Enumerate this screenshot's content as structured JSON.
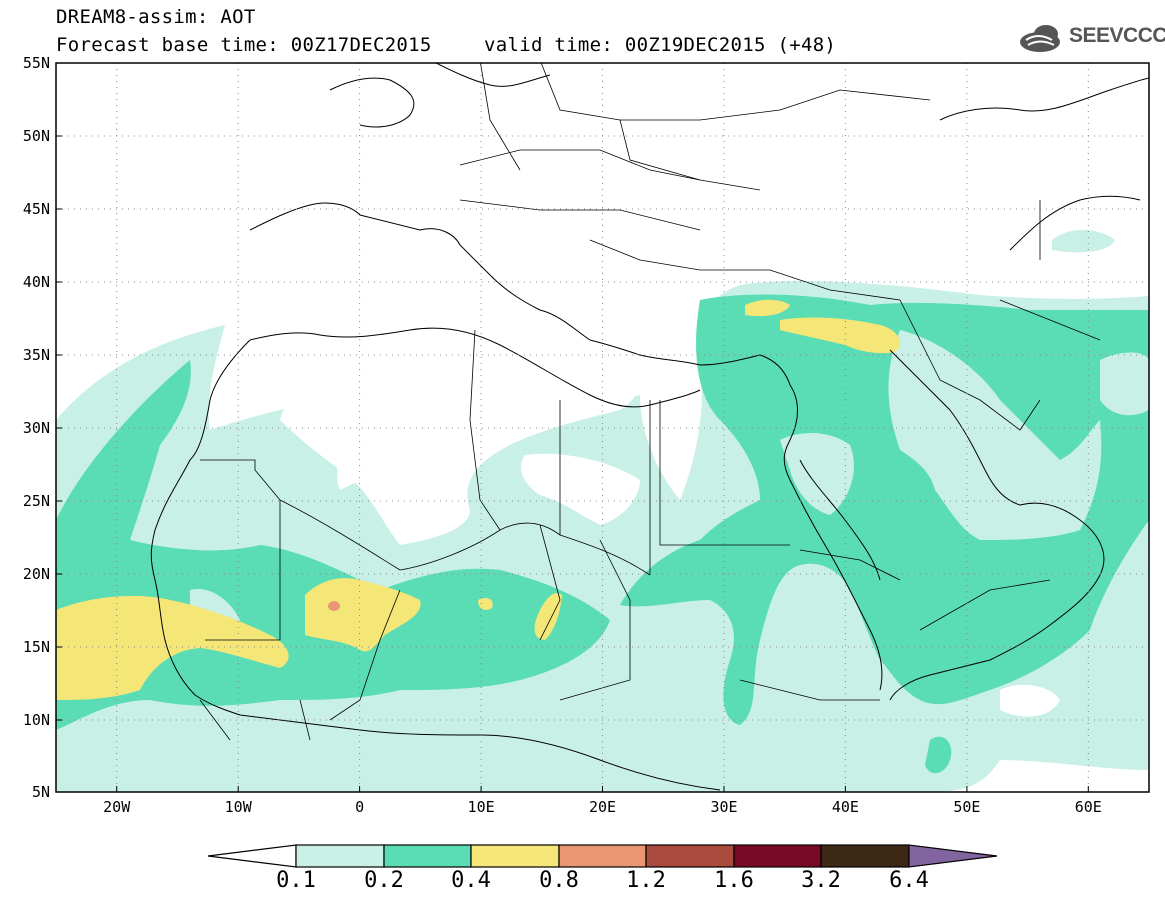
{
  "title": {
    "line1": "DREAM8-assim: AOT",
    "line2": "Forecast base time: 00Z17DEC2015",
    "valid": "valid time: 00Z19DEC2015 (+48)"
  },
  "logo": {
    "text": "SEEVCCC",
    "icon": "cloud-icon"
  },
  "map": {
    "lat_labels": [
      "55N",
      "50N",
      "45N",
      "40N",
      "35N",
      "30N",
      "25N",
      "20N",
      "15N",
      "10N",
      "5N"
    ],
    "lon_labels": [
      "20W",
      "10W",
      "0",
      "10E",
      "20E",
      "30E",
      "40E",
      "50E",
      "60E"
    ],
    "lat_range": [
      5,
      55
    ],
    "lon_range": [
      -25,
      65
    ],
    "grid": "dotted"
  },
  "colorbar": {
    "labels": [
      "0.1",
      "0.2",
      "0.4",
      "0.8",
      "1.2",
      "1.6",
      "3.2",
      "6.4"
    ],
    "colors": [
      "#ffffff",
      "#c8f0e6",
      "#5adcb4",
      "#f5e678",
      "#eb9673",
      "#a84b3c",
      "#780a28",
      "#3c2814",
      "#8264a0"
    ]
  },
  "legend_colors": {
    "c01": "#c8f0e6",
    "c02": "#5adcb4",
    "c04": "#f5e678",
    "c08": "#eb9673"
  }
}
